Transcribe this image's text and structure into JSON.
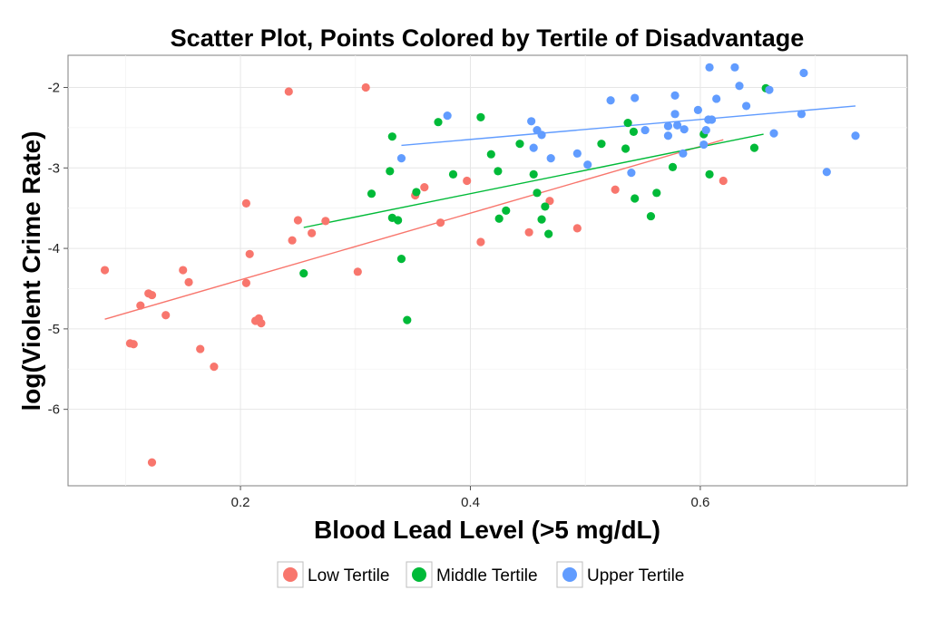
{
  "chart_data": {
    "type": "scatter",
    "title": "Scatter Plot, Points Colored by Tertile of Disadvantage",
    "xlabel": "Blood Lead Level (>5 mg/dL)",
    "ylabel": "log(Violent Crime Rate)",
    "xlim": [
      0.05,
      0.78
    ],
    "ylim": [
      -6.95,
      -1.6
    ],
    "xticks": [
      0.2,
      0.4,
      0.6
    ],
    "xtick_labels": [
      "0.2",
      "0.4",
      "0.6"
    ],
    "yticks": [
      -6,
      -5,
      -4,
      -3,
      -2
    ],
    "ytick_labels": [
      "-6",
      "-5",
      "-4",
      "-3",
      "-2"
    ],
    "grid": true,
    "legend_position": "bottom",
    "series": [
      {
        "name": "Low Tertile",
        "color": "#F8766D",
        "points": [
          [
            0.082,
            -4.27
          ],
          [
            0.12,
            -4.56
          ],
          [
            0.123,
            -4.58
          ],
          [
            0.113,
            -4.71
          ],
          [
            0.135,
            -4.83
          ],
          [
            0.15,
            -4.27
          ],
          [
            0.155,
            -4.42
          ],
          [
            0.104,
            -5.18
          ],
          [
            0.107,
            -5.19
          ],
          [
            0.165,
            -5.25
          ],
          [
            0.177,
            -5.47
          ],
          [
            0.123,
            -6.66
          ],
          [
            0.205,
            -3.44
          ],
          [
            0.208,
            -4.07
          ],
          [
            0.205,
            -4.43
          ],
          [
            0.213,
            -4.9
          ],
          [
            0.216,
            -4.87
          ],
          [
            0.218,
            -4.93
          ],
          [
            0.242,
            -2.05
          ],
          [
            0.245,
            -3.9
          ],
          [
            0.25,
            -3.65
          ],
          [
            0.262,
            -3.81
          ],
          [
            0.274,
            -3.66
          ],
          [
            0.302,
            -4.29
          ],
          [
            0.309,
            -2.0
          ],
          [
            0.352,
            -3.34
          ],
          [
            0.36,
            -3.24
          ],
          [
            0.374,
            -3.68
          ],
          [
            0.397,
            -3.16
          ],
          [
            0.409,
            -3.92
          ],
          [
            0.451,
            -3.8
          ],
          [
            0.469,
            -3.41
          ],
          [
            0.493,
            -3.75
          ],
          [
            0.526,
            -3.27
          ],
          [
            0.62,
            -3.16
          ]
        ],
        "fit": {
          "x": [
            0.082,
            0.62
          ],
          "y": [
            -4.88,
            -2.65
          ]
        }
      },
      {
        "name": "Middle Tertile",
        "color": "#00BA38",
        "points": [
          [
            0.255,
            -4.31
          ],
          [
            0.314,
            -3.32
          ],
          [
            0.33,
            -3.04
          ],
          [
            0.332,
            -2.61
          ],
          [
            0.332,
            -3.62
          ],
          [
            0.337,
            -3.65
          ],
          [
            0.34,
            -4.13
          ],
          [
            0.345,
            -4.89
          ],
          [
            0.353,
            -3.3
          ],
          [
            0.372,
            -2.43
          ],
          [
            0.385,
            -3.08
          ],
          [
            0.409,
            -2.37
          ],
          [
            0.418,
            -2.83
          ],
          [
            0.424,
            -3.04
          ],
          [
            0.425,
            -3.63
          ],
          [
            0.431,
            -3.53
          ],
          [
            0.443,
            -2.7
          ],
          [
            0.455,
            -3.08
          ],
          [
            0.458,
            -3.31
          ],
          [
            0.462,
            -3.64
          ],
          [
            0.465,
            -3.48
          ],
          [
            0.468,
            -3.82
          ],
          [
            0.514,
            -2.7
          ],
          [
            0.535,
            -2.76
          ],
          [
            0.537,
            -2.44
          ],
          [
            0.542,
            -2.55
          ],
          [
            0.543,
            -3.38
          ],
          [
            0.557,
            -3.6
          ],
          [
            0.562,
            -3.31
          ],
          [
            0.576,
            -2.99
          ],
          [
            0.603,
            -2.58
          ],
          [
            0.608,
            -3.08
          ],
          [
            0.647,
            -2.75
          ],
          [
            0.657,
            -2.01
          ]
        ],
        "fit": {
          "x": [
            0.255,
            0.655
          ],
          "y": [
            -3.74,
            -2.58
          ]
        }
      },
      {
        "name": "Upper Tertile",
        "color": "#619CFF",
        "points": [
          [
            0.34,
            -2.88
          ],
          [
            0.38,
            -2.35
          ],
          [
            0.453,
            -2.42
          ],
          [
            0.455,
            -2.75
          ],
          [
            0.458,
            -2.53
          ],
          [
            0.462,
            -2.59
          ],
          [
            0.47,
            -2.88
          ],
          [
            0.493,
            -2.82
          ],
          [
            0.502,
            -2.96
          ],
          [
            0.522,
            -2.16
          ],
          [
            0.54,
            -3.06
          ],
          [
            0.543,
            -2.13
          ],
          [
            0.552,
            -2.53
          ],
          [
            0.572,
            -2.6
          ],
          [
            0.572,
            -2.48
          ],
          [
            0.578,
            -2.33
          ],
          [
            0.578,
            -2.1
          ],
          [
            0.58,
            -2.47
          ],
          [
            0.585,
            -2.82
          ],
          [
            0.586,
            -2.52
          ],
          [
            0.598,
            -2.28
          ],
          [
            0.603,
            -2.71
          ],
          [
            0.605,
            -2.53
          ],
          [
            0.607,
            -2.4
          ],
          [
            0.608,
            -1.75
          ],
          [
            0.61,
            -2.4
          ],
          [
            0.614,
            -2.14
          ],
          [
            0.63,
            -1.75
          ],
          [
            0.634,
            -1.98
          ],
          [
            0.64,
            -2.23
          ],
          [
            0.66,
            -2.03
          ],
          [
            0.664,
            -2.57
          ],
          [
            0.688,
            -2.33
          ],
          [
            0.69,
            -1.82
          ],
          [
            0.71,
            -3.05
          ],
          [
            0.735,
            -2.6
          ]
        ],
        "fit": {
          "x": [
            0.34,
            0.735
          ],
          "y": [
            -2.72,
            -2.23
          ]
        }
      }
    ]
  }
}
